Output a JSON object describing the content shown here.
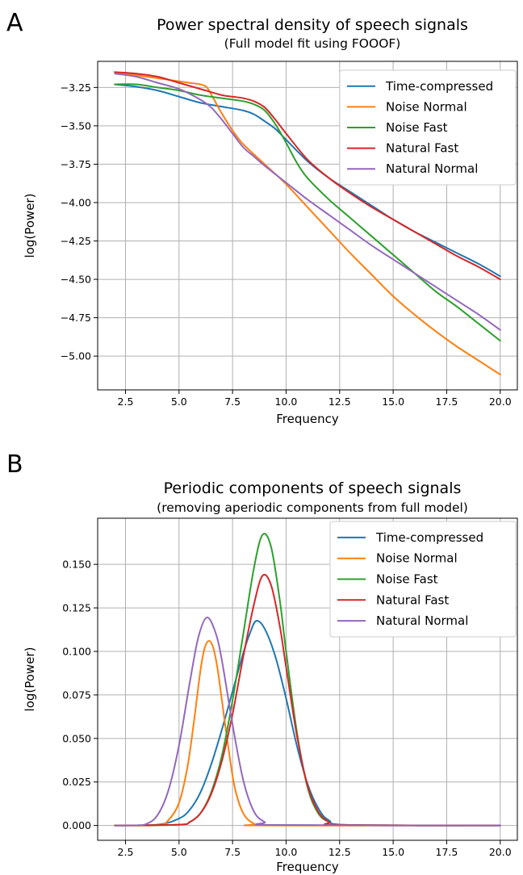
{
  "chart_data": [
    {
      "panel": "A",
      "type": "line",
      "title": "Power spectral density of speech signals",
      "subtitle": "(Full model fit using FOOOF)",
      "xlabel": "Frequency",
      "ylabel": "log(Power)",
      "xlim": [
        1.2,
        20.8
      ],
      "ylim": [
        -5.22,
        -3.08
      ],
      "xticks": [
        2.5,
        5.0,
        7.5,
        10.0,
        12.5,
        15.0,
        17.5,
        20.0
      ],
      "xtick_labels": [
        "2.5",
        "5.0",
        "7.5",
        "10.0",
        "12.5",
        "15.0",
        "17.5",
        "20.0"
      ],
      "yticks": [
        -3.25,
        -3.5,
        -3.75,
        -4.0,
        -4.25,
        -4.5,
        -4.75,
        -5.0
      ],
      "ytick_labels": [
        "−3.25",
        "−3.50",
        "−3.75",
        "−4.00",
        "−4.25",
        "−4.50",
        "−4.75",
        "−5.00"
      ],
      "grid": true,
      "legend_position": "top-right",
      "series": [
        {
          "name": "Time-compressed",
          "color": "#1f77b4",
          "x": [
            2,
            3,
            4,
            5,
            6,
            7,
            8,
            8.5,
            9,
            9.5,
            10,
            11,
            12,
            13,
            14,
            15,
            16,
            17,
            18,
            19,
            20
          ],
          "y": [
            -3.23,
            -3.245,
            -3.27,
            -3.31,
            -3.35,
            -3.375,
            -3.4,
            -3.425,
            -3.47,
            -3.52,
            -3.59,
            -3.73,
            -3.84,
            -3.93,
            -4.02,
            -4.11,
            -4.19,
            -4.26,
            -4.33,
            -4.4,
            -4.48
          ]
        },
        {
          "name": "Noise Normal",
          "color": "#ff7f0e",
          "x": [
            2,
            3,
            4,
            5,
            5.5,
            6,
            6.3,
            6.6,
            7,
            7.5,
            8,
            9,
            10,
            11,
            12,
            13,
            14,
            15,
            16,
            17,
            18,
            19,
            20
          ],
          "y": [
            -3.15,
            -3.17,
            -3.19,
            -3.21,
            -3.22,
            -3.23,
            -3.25,
            -3.32,
            -3.42,
            -3.53,
            -3.62,
            -3.75,
            -3.88,
            -4.03,
            -4.18,
            -4.33,
            -4.47,
            -4.61,
            -4.73,
            -4.84,
            -4.94,
            -5.03,
            -5.12
          ]
        },
        {
          "name": "Noise Fast",
          "color": "#2ca02c",
          "x": [
            2,
            3,
            4,
            5,
            6,
            7,
            8,
            8.5,
            9,
            9.5,
            10,
            10.5,
            11,
            12,
            13,
            14,
            15,
            16,
            17,
            18,
            19,
            20
          ],
          "y": [
            -3.23,
            -3.23,
            -3.25,
            -3.27,
            -3.3,
            -3.32,
            -3.34,
            -3.36,
            -3.4,
            -3.49,
            -3.61,
            -3.74,
            -3.84,
            -3.98,
            -4.1,
            -4.22,
            -4.34,
            -4.46,
            -4.58,
            -4.68,
            -4.79,
            -4.9
          ]
        },
        {
          "name": "Natural Fast",
          "color": "#d62728",
          "x": [
            2,
            3,
            4,
            5,
            6,
            7,
            7.5,
            8,
            8.5,
            9,
            9.5,
            10,
            11,
            12,
            13,
            14,
            15,
            16,
            17,
            18,
            19,
            20
          ],
          "y": [
            -3.15,
            -3.16,
            -3.18,
            -3.22,
            -3.26,
            -3.3,
            -3.31,
            -3.32,
            -3.34,
            -3.38,
            -3.46,
            -3.55,
            -3.72,
            -3.84,
            -3.94,
            -4.03,
            -4.11,
            -4.19,
            -4.27,
            -4.35,
            -4.42,
            -4.5
          ]
        },
        {
          "name": "Natural Normal",
          "color": "#9467bd",
          "x": [
            2,
            3,
            4,
            5,
            6,
            6.5,
            7,
            7.5,
            8,
            8.5,
            9,
            10,
            11,
            12,
            13,
            14,
            15,
            16,
            17,
            18,
            19,
            20
          ],
          "y": [
            -3.16,
            -3.18,
            -3.22,
            -3.26,
            -3.33,
            -3.38,
            -3.46,
            -3.55,
            -3.64,
            -3.7,
            -3.76,
            -3.87,
            -3.98,
            -4.08,
            -4.18,
            -4.28,
            -4.37,
            -4.46,
            -4.55,
            -4.64,
            -4.73,
            -4.83
          ]
        }
      ]
    },
    {
      "panel": "B",
      "type": "line",
      "title": "Periodic components of speech signals",
      "subtitle": "(removing aperiodic components from full model)",
      "xlabel": "Frequency",
      "ylabel": "log(Power)",
      "xlim": [
        1.2,
        20.8
      ],
      "ylim": [
        -0.0085,
        0.1765
      ],
      "xticks": [
        2.5,
        5.0,
        7.5,
        10.0,
        12.5,
        15.0,
        17.5,
        20.0
      ],
      "xtick_labels": [
        "2.5",
        "5.0",
        "7.5",
        "10.0",
        "12.5",
        "15.0",
        "17.5",
        "20.0"
      ],
      "yticks": [
        0.0,
        0.025,
        0.05,
        0.075,
        0.1,
        0.125,
        0.15
      ],
      "ytick_labels": [
        "0.000",
        "0.025",
        "0.050",
        "0.075",
        "0.100",
        "0.125",
        "0.150"
      ],
      "grid": true,
      "legend_position": "top-right",
      "series": [
        {
          "name": "Time-compressed",
          "color": "#1f77b4",
          "x": [
            2,
            4,
            5,
            5.5,
            6,
            6.5,
            7,
            7.5,
            8,
            8.3,
            8.6,
            9,
            9.5,
            10,
            10.5,
            11,
            11.5,
            12,
            13,
            20
          ],
          "y": [
            0,
            0.0005,
            0.004,
            0.009,
            0.019,
            0.035,
            0.055,
            0.077,
            0.099,
            0.11,
            0.1175,
            0.113,
            0.097,
            0.073,
            0.046,
            0.024,
            0.01,
            0.003,
            0.0003,
            0
          ]
        },
        {
          "name": "Noise Normal",
          "color": "#ff7f0e",
          "x": [
            2,
            4,
            4.5,
            5,
            5.4,
            5.7,
            6,
            6.2,
            6.4,
            6.6,
            6.8,
            7,
            7.3,
            7.6,
            8,
            8.5,
            9,
            20
          ],
          "y": [
            0,
            0.0002,
            0.003,
            0.013,
            0.034,
            0.06,
            0.089,
            0.102,
            0.106,
            0.102,
            0.09,
            0.072,
            0.045,
            0.022,
            0.007,
            0.001,
            0,
            0
          ]
        },
        {
          "name": "Noise Fast",
          "color": "#2ca02c",
          "x": [
            2,
            5,
            5.5,
            6,
            6.5,
            7,
            7.5,
            8,
            8.5,
            8.9,
            9.3,
            9.7,
            10,
            10.5,
            11,
            11.5,
            12,
            12.5,
            20
          ],
          "y": [
            0,
            0.0005,
            0.002,
            0.007,
            0.019,
            0.04,
            0.072,
            0.11,
            0.148,
            0.167,
            0.16,
            0.13,
            0.1,
            0.054,
            0.022,
            0.007,
            0.002,
            0.0003,
            0
          ]
        },
        {
          "name": "Natural Fast",
          "color": "#d62728",
          "x": [
            2,
            5,
            5.5,
            6,
            6.5,
            7,
            7.5,
            8,
            8.5,
            8.9,
            9.3,
            9.7,
            10,
            10.5,
            11,
            11.5,
            12,
            12.5,
            20
          ],
          "y": [
            0,
            0.0005,
            0.002,
            0.007,
            0.018,
            0.037,
            0.064,
            0.097,
            0.127,
            0.1435,
            0.138,
            0.115,
            0.091,
            0.052,
            0.023,
            0.008,
            0.002,
            0.0003,
            0
          ]
        },
        {
          "name": "Natural Normal",
          "color": "#9467bd",
          "x": [
            2,
            3,
            3.5,
            4,
            4.5,
            5,
            5.5,
            5.9,
            6.3,
            6.7,
            7,
            7.5,
            8,
            8.5,
            9,
            9.5,
            20
          ],
          "y": [
            0,
            0.0001,
            0.001,
            0.006,
            0.02,
            0.046,
            0.082,
            0.108,
            0.1195,
            0.111,
            0.095,
            0.058,
            0.026,
            0.008,
            0.002,
            0.0003,
            0
          ]
        }
      ]
    }
  ]
}
